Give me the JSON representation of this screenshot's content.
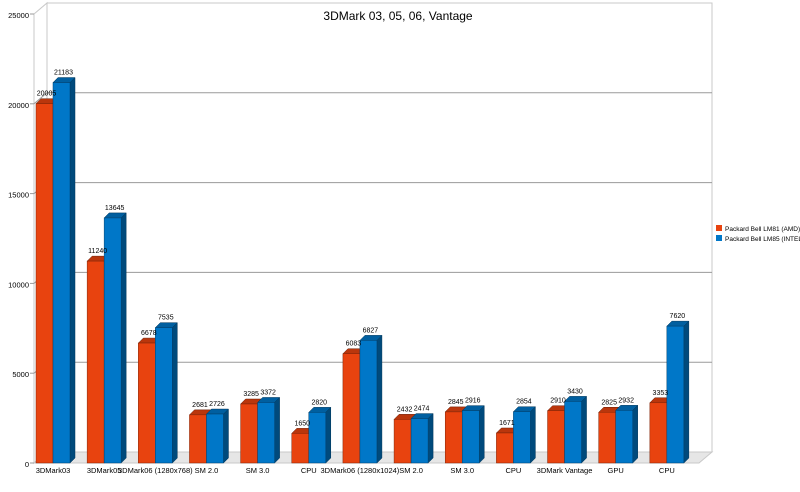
{
  "chart_data": {
    "type": "bar",
    "title": "3DMark 03, 05, 06, Vantage",
    "xlabel": "",
    "ylabel": "",
    "ylim": [
      0,
      25000
    ],
    "yticks": [
      0,
      5000,
      10000,
      15000,
      20000,
      25000
    ],
    "grid": true,
    "legend_position": "right",
    "categories": [
      "3DMark03",
      "3DMark05",
      "3DMark06 (1280x768)",
      "SM 2.0",
      "SM 3.0",
      "CPU",
      "3DMark06 (1280x1024)",
      "SM 2.0",
      "SM 3.0",
      "CPU",
      "3DMark Vantage",
      "GPU",
      "CPU"
    ],
    "series": [
      {
        "name": "Packard Bell LM81 (AMD)",
        "color": "#e8430f",
        "values": [
          20005,
          11240,
          6678,
          2681,
          3285,
          1650,
          6083,
          2432,
          2845,
          1671,
          2910,
          2825,
          3353
        ],
        "labels": [
          "20005",
          "11240",
          "6678",
          "2681",
          "3285",
          "1650",
          "6083",
          "2432",
          "2845",
          "1671",
          "2910",
          "2825",
          "3353"
        ]
      },
      {
        "name": "Packard Bell LM85 (INTEL)",
        "color": "#0077c8",
        "values": [
          21183,
          13645,
          7535,
          2726,
          3372,
          2820,
          6827,
          2474,
          2916,
          2854,
          3430,
          2932,
          7620
        ],
        "labels": [
          "21183",
          "13645",
          "7535",
          "2726",
          "3372",
          "2820",
          "6827",
          "2474",
          "2916",
          "2854",
          "3430",
          "2932",
          "7620"
        ]
      }
    ]
  }
}
